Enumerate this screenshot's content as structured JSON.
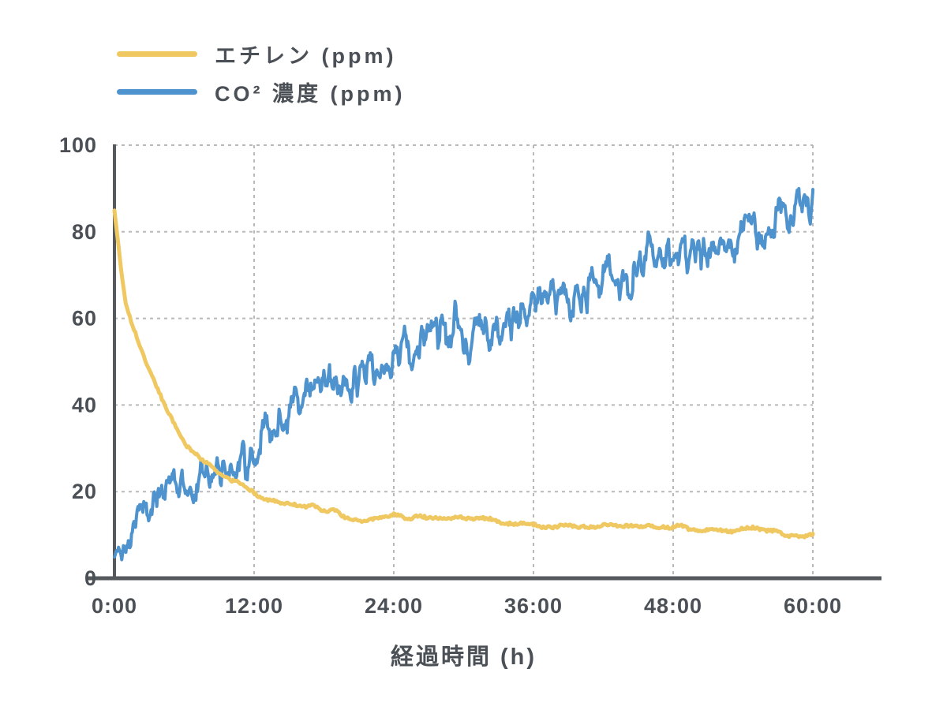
{
  "chart_data": {
    "type": "line",
    "title": "",
    "x_label": "経過時間 (h)",
    "y_label": "",
    "x_range_hours": [
      0,
      60
    ],
    "y_range": [
      0,
      100
    ],
    "grid": {
      "horizontal": true,
      "vertical": true,
      "style": "dashed",
      "color": "#b9b9b9"
    },
    "axis_color": "#55595e",
    "text_color": "#4b5056",
    "legend_position": "top-left",
    "x_ticks": [
      {
        "hours": 0,
        "label": "0:00"
      },
      {
        "hours": 12,
        "label": "12:00"
      },
      {
        "hours": 24,
        "label": "24:00"
      },
      {
        "hours": 36,
        "label": "36:00"
      },
      {
        "hours": 48,
        "label": "48:00"
      },
      {
        "hours": 60,
        "label": "60:00"
      }
    ],
    "y_ticks": [
      {
        "value": 0,
        "label": "0"
      },
      {
        "value": 20,
        "label": "20"
      },
      {
        "value": 40,
        "label": "40"
      },
      {
        "value": 60,
        "label": "60"
      },
      {
        "value": 80,
        "label": "80"
      },
      {
        "value": 100,
        "label": "100"
      }
    ],
    "series": [
      {
        "id": "ethylene",
        "name": "エチレン (ppm)",
        "unit": "ppm",
        "color": "#efc861",
        "line_width": 5,
        "noise": {
          "seed": 7,
          "amplitude": 0.55,
          "jitter": 0.3,
          "lattice_step": 0.9,
          "sample_step": 0.12
        },
        "points": [
          [
            0,
            85.5
          ],
          [
            0.25,
            79.5
          ],
          [
            0.5,
            73.5
          ],
          [
            0.75,
            68.2
          ],
          [
            1,
            63.5
          ],
          [
            1.5,
            58.5
          ],
          [
            2,
            54.5
          ],
          [
            2.5,
            51
          ],
          [
            3,
            48
          ],
          [
            3.5,
            45
          ],
          [
            4,
            42
          ],
          [
            4.5,
            39
          ],
          [
            5,
            36.5
          ],
          [
            5.5,
            34
          ],
          [
            6,
            31.5
          ],
          [
            6.5,
            30
          ],
          [
            7,
            28.7
          ],
          [
            7.5,
            27.4
          ],
          [
            8,
            26.2
          ],
          [
            8.5,
            25.3
          ],
          [
            9,
            24.5
          ],
          [
            9.5,
            23.7
          ],
          [
            10,
            23
          ],
          [
            10.5,
            22.2
          ],
          [
            11,
            21.5
          ],
          [
            11.5,
            20.6
          ],
          [
            12,
            19.8
          ],
          [
            12.5,
            19.1
          ],
          [
            13,
            18.5
          ],
          [
            13.5,
            18.1
          ],
          [
            14,
            17.8
          ],
          [
            14.5,
            17.5
          ],
          [
            15,
            17.2
          ],
          [
            15.5,
            17
          ],
          [
            16,
            16.9
          ],
          [
            16.5,
            16.6
          ],
          [
            17,
            16.3
          ],
          [
            17.5,
            16
          ],
          [
            18,
            15.8
          ],
          [
            18.5,
            15.5
          ],
          [
            19,
            15.2
          ],
          [
            19.5,
            14.7
          ],
          [
            20,
            14.3
          ],
          [
            20.5,
            13.9
          ],
          [
            21,
            13.6
          ],
          [
            21.5,
            13.7
          ],
          [
            22,
            13.9
          ],
          [
            22.5,
            14
          ],
          [
            23,
            14.2
          ],
          [
            23.5,
            14.3
          ],
          [
            24,
            14.5
          ],
          [
            24.5,
            14.3
          ],
          [
            25,
            14.2
          ],
          [
            25.5,
            14.1
          ],
          [
            26,
            14
          ],
          [
            27,
            13.9
          ],
          [
            28,
            13.8
          ],
          [
            29,
            13.7
          ],
          [
            30,
            13.6
          ],
          [
            31,
            13.5
          ],
          [
            32,
            13.4
          ],
          [
            33,
            13.2
          ],
          [
            34,
            13
          ],
          [
            35,
            12.8
          ],
          [
            36,
            12.5
          ],
          [
            37,
            12.3
          ],
          [
            38,
            12.2
          ],
          [
            39,
            12.1
          ],
          [
            40,
            12
          ],
          [
            41,
            11.9
          ],
          [
            42,
            11.9
          ],
          [
            43,
            11.8
          ],
          [
            44,
            11.9
          ],
          [
            45,
            12.1
          ],
          [
            46,
            12.3
          ],
          [
            47,
            12.2
          ],
          [
            48,
            12
          ],
          [
            48.5,
            11.8
          ],
          [
            49,
            11.6
          ],
          [
            50,
            11.4
          ],
          [
            51,
            11.3
          ],
          [
            52,
            11.2
          ],
          [
            53,
            11.3
          ],
          [
            54,
            11.4
          ],
          [
            55,
            11.2
          ],
          [
            56,
            10.9
          ],
          [
            56.5,
            10.7
          ],
          [
            57,
            10.4
          ],
          [
            57.5,
            9.9
          ],
          [
            58,
            9.4
          ],
          [
            58.5,
            9.2
          ],
          [
            59,
            9.8
          ],
          [
            59.5,
            10.1
          ],
          [
            60,
            10.4
          ]
        ]
      },
      {
        "id": "co2",
        "name": "CO² 濃度 (ppm)",
        "unit": "ppm",
        "color": "#4e93ce",
        "line_width": 4,
        "noise": {
          "seed": 13,
          "amplitude": 4.4,
          "jitter": 1.5,
          "lattice_step": 0.24,
          "sample_step": 0.07
        },
        "points": [
          [
            0,
            4.5
          ],
          [
            0.25,
            7
          ],
          [
            0.35,
            9.5
          ],
          [
            0.5,
            8.5
          ],
          [
            1,
            11.5
          ],
          [
            1.5,
            12.5
          ],
          [
            2,
            13.8
          ],
          [
            2.5,
            15
          ],
          [
            3,
            17
          ],
          [
            3.5,
            18.5
          ],
          [
            4,
            20
          ],
          [
            4.5,
            22
          ],
          [
            5,
            23.5
          ],
          [
            5.5,
            23
          ],
          [
            6,
            22
          ],
          [
            6.5,
            22.5
          ],
          [
            7,
            23.2
          ],
          [
            7.5,
            23.8
          ],
          [
            8,
            24.5
          ],
          [
            8.5,
            25.2
          ],
          [
            9,
            26
          ],
          [
            9.5,
            26.5
          ],
          [
            10,
            27
          ],
          [
            10.5,
            27.8
          ],
          [
            11,
            28.5
          ],
          [
            11.5,
            27
          ],
          [
            12,
            30
          ],
          [
            12.5,
            31.5
          ],
          [
            13,
            33
          ],
          [
            13.5,
            34.5
          ],
          [
            14,
            36
          ],
          [
            14.5,
            37.2
          ],
          [
            15,
            38.5
          ],
          [
            15.5,
            39.5
          ],
          [
            16,
            40.5
          ],
          [
            16.5,
            41.5
          ],
          [
            17,
            42.5
          ],
          [
            17.5,
            43.2
          ],
          [
            18,
            44.5
          ],
          [
            18.5,
            44.8
          ],
          [
            19,
            45
          ],
          [
            19.5,
            45.2
          ],
          [
            20,
            45.5
          ],
          [
            20.5,
            46
          ],
          [
            21,
            46.5
          ],
          [
            21.5,
            47.2
          ],
          [
            22,
            48
          ],
          [
            22.5,
            48.7
          ],
          [
            23,
            49.5
          ],
          [
            23.5,
            50
          ],
          [
            24,
            50.5
          ],
          [
            24.5,
            52
          ],
          [
            25,
            53
          ],
          [
            25.5,
            53.2
          ],
          [
            26,
            53.5
          ],
          [
            26.5,
            54.2
          ],
          [
            27,
            55
          ],
          [
            27.5,
            56
          ],
          [
            28,
            57
          ],
          [
            28.5,
            58
          ],
          [
            29,
            58.5
          ],
          [
            29.5,
            62
          ],
          [
            30,
            56
          ],
          [
            30.5,
            53.5
          ],
          [
            31,
            55
          ],
          [
            31.5,
            56
          ],
          [
            32,
            57.5
          ],
          [
            32.5,
            57
          ],
          [
            33,
            56.5
          ],
          [
            33.5,
            58
          ],
          [
            34,
            59.5
          ],
          [
            34.5,
            58
          ],
          [
            35,
            60
          ],
          [
            35.5,
            62
          ],
          [
            36,
            64
          ],
          [
            36.5,
            65
          ],
          [
            37,
            65.5
          ],
          [
            37.5,
            65
          ],
          [
            38,
            64.5
          ],
          [
            38.5,
            64
          ],
          [
            39,
            64
          ],
          [
            39.5,
            64.5
          ],
          [
            40,
            65
          ],
          [
            40.5,
            66
          ],
          [
            41,
            67
          ],
          [
            41.5,
            68
          ],
          [
            42,
            69
          ],
          [
            42.5,
            69.5
          ],
          [
            43,
            70
          ],
          [
            43.5,
            68
          ],
          [
            44,
            70
          ],
          [
            44.5,
            67
          ],
          [
            45,
            71
          ],
          [
            45.5,
            73
          ],
          [
            46,
            79
          ],
          [
            46.5,
            75
          ],
          [
            47,
            75
          ],
          [
            47.5,
            74.5
          ],
          [
            48,
            71
          ],
          [
            48.5,
            75
          ],
          [
            49,
            75.5
          ],
          [
            49.5,
            76
          ],
          [
            50,
            76.5
          ],
          [
            50.5,
            77
          ],
          [
            51,
            77
          ],
          [
            51.5,
            77.2
          ],
          [
            52,
            77.5
          ],
          [
            52.5,
            77.8
          ],
          [
            53,
            78
          ],
          [
            53.5,
            78.2
          ],
          [
            54,
            78.5
          ],
          [
            54.5,
            79
          ],
          [
            55,
            80
          ],
          [
            55.5,
            80.5
          ],
          [
            56,
            81
          ],
          [
            56.5,
            82
          ],
          [
            57,
            82.5
          ],
          [
            57.5,
            83
          ],
          [
            58,
            83.5
          ],
          [
            58.5,
            84.5
          ],
          [
            59,
            85
          ],
          [
            59.5,
            85.5
          ],
          [
            60,
            87
          ]
        ]
      }
    ]
  }
}
